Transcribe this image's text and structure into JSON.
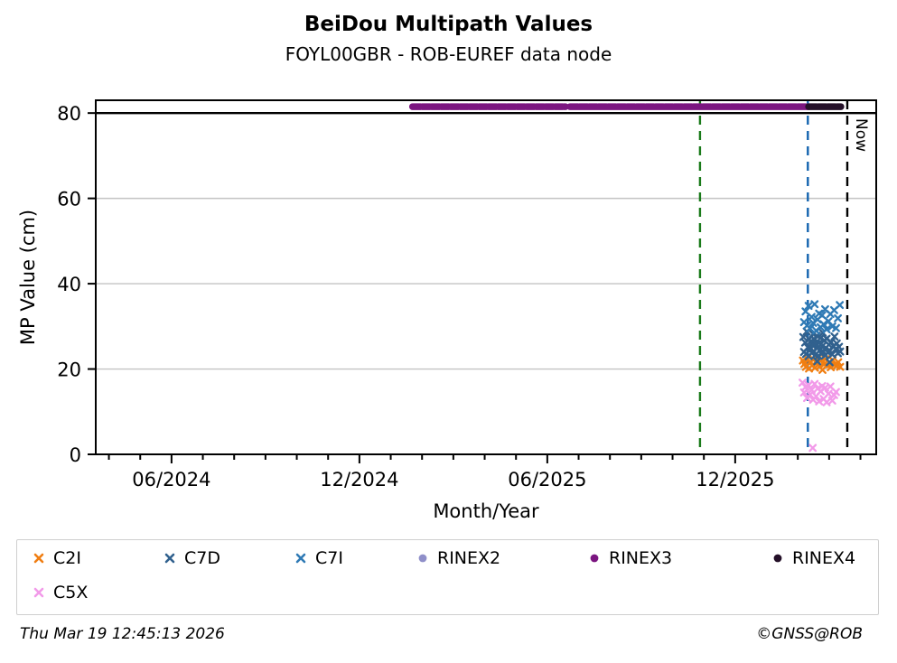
{
  "header": {
    "title": "BeiDou Multipath Values",
    "subtitle": "FOYL00GBR - ROB-EUREF data node"
  },
  "footer": {
    "timestamp": "Thu Mar 19 12:45:13 2026",
    "copyright": "©GNSS@ROB"
  },
  "chart_data": {
    "type": "scatter",
    "title": "BeiDou Multipath Values",
    "subtitle": "FOYL00GBR - ROB-EUREF data node",
    "xlabel": "Month/Year",
    "ylabel": "MP Value (cm)",
    "xlim_decimal_year": [
      2024.215,
      2026.292
    ],
    "ylim": [
      0,
      83
    ],
    "yticks": [
      0,
      20,
      40,
      60,
      80
    ],
    "grid_y": [
      20,
      40,
      60
    ],
    "threshold_line_y": 80,
    "xticks_major": [
      {
        "year": 2024.4167,
        "label": "06/2024"
      },
      {
        "year": 2024.9167,
        "label": "12/2024"
      },
      {
        "year": 2025.4167,
        "label": "06/2025"
      },
      {
        "year": 2025.9167,
        "label": "12/2025"
      }
    ],
    "xticks_minor_interval_months": 1,
    "legend_position": "bottom",
    "vlines": [
      {
        "name": "green-marker-line",
        "x": 2025.823,
        "color": "#1a7a1a",
        "style": "dashed"
      },
      {
        "name": "blue-marker-line",
        "x": 2026.11,
        "color": "#1464af",
        "style": "dashed"
      },
      {
        "name": "now-line",
        "x": 2026.215,
        "color": "#000000",
        "style": "dashed",
        "label": "Now"
      }
    ],
    "series": [
      {
        "name": "C2I",
        "marker": "x",
        "color": "#f07e12",
        "points": [
          [
            2026.097,
            22.0
          ],
          [
            2026.101,
            21.2
          ],
          [
            2026.105,
            20.5
          ],
          [
            2026.109,
            22.4
          ],
          [
            2026.113,
            20.1
          ],
          [
            2026.117,
            21.7
          ],
          [
            2026.121,
            20.8
          ],
          [
            2026.125,
            22.2
          ],
          [
            2026.129,
            20.3
          ],
          [
            2026.133,
            21.4
          ],
          [
            2026.137,
            22.6
          ],
          [
            2026.141,
            20.6
          ],
          [
            2026.145,
            21.9
          ],
          [
            2026.149,
            19.8
          ],
          [
            2026.153,
            21.1
          ],
          [
            2026.157,
            22.3
          ],
          [
            2026.161,
            20.9
          ],
          [
            2026.166,
            21.5
          ],
          [
            2026.171,
            20.4
          ],
          [
            2026.176,
            22.1
          ],
          [
            2026.181,
            21.0
          ],
          [
            2026.186,
            20.7
          ],
          [
            2026.191,
            21.6
          ],
          [
            2026.196,
            20.5
          ]
        ]
      },
      {
        "name": "C7D",
        "marker": "x",
        "color": "#31618e",
        "points": [
          [
            2026.098,
            27.5
          ],
          [
            2026.1,
            24.0
          ],
          [
            2026.103,
            26.2
          ],
          [
            2026.105,
            23.5
          ],
          [
            2026.107,
            28.8
          ],
          [
            2026.11,
            25.1
          ],
          [
            2026.112,
            23.0
          ],
          [
            2026.114,
            27.0
          ],
          [
            2026.116,
            24.6
          ],
          [
            2026.118,
            26.5
          ],
          [
            2026.12,
            23.8
          ],
          [
            2026.122,
            25.6
          ],
          [
            2026.124,
            28.2
          ],
          [
            2026.126,
            24.2
          ],
          [
            2026.128,
            26.9
          ],
          [
            2026.13,
            23.3
          ],
          [
            2026.132,
            25.9
          ],
          [
            2026.134,
            27.8
          ],
          [
            2026.135,
            21.8
          ],
          [
            2026.136,
            24.9
          ],
          [
            2026.138,
            23.1
          ],
          [
            2026.14,
            26.1
          ],
          [
            2026.142,
            24.4
          ],
          [
            2026.144,
            27.3
          ],
          [
            2026.146,
            23.6
          ],
          [
            2026.148,
            25.3
          ],
          [
            2026.15,
            28.5
          ],
          [
            2026.152,
            24.0
          ],
          [
            2026.154,
            26.7
          ],
          [
            2026.156,
            23.2
          ],
          [
            2026.158,
            25.0
          ],
          [
            2026.16,
            27.1
          ],
          [
            2026.163,
            23.9
          ],
          [
            2026.166,
            25.7
          ],
          [
            2026.168,
            21.6
          ],
          [
            2026.169,
            24.3
          ],
          [
            2026.172,
            26.3
          ],
          [
            2026.175,
            23.4
          ],
          [
            2026.178,
            25.4
          ],
          [
            2026.181,
            27.6
          ],
          [
            2026.184,
            24.7
          ],
          [
            2026.187,
            26.0
          ],
          [
            2026.19,
            23.7
          ],
          [
            2026.193,
            25.2
          ],
          [
            2026.196,
            24.1
          ]
        ]
      },
      {
        "name": "C7I",
        "marker": "x",
        "color": "#2f7ab5",
        "points": [
          [
            2026.1,
            31.0
          ],
          [
            2026.104,
            33.5
          ],
          [
            2026.108,
            30.2
          ],
          [
            2026.112,
            34.8
          ],
          [
            2026.116,
            29.5
          ],
          [
            2026.12,
            32.2
          ],
          [
            2026.124,
            30.8
          ],
          [
            2026.128,
            35.2
          ],
          [
            2026.132,
            29.0
          ],
          [
            2026.136,
            31.6
          ],
          [
            2026.14,
            33.0
          ],
          [
            2026.144,
            29.8
          ],
          [
            2026.148,
            32.6
          ],
          [
            2026.152,
            30.5
          ],
          [
            2026.156,
            34.0
          ],
          [
            2026.16,
            29.3
          ],
          [
            2026.165,
            31.2
          ],
          [
            2026.17,
            32.9
          ],
          [
            2026.175,
            30.0
          ],
          [
            2026.18,
            33.8
          ],
          [
            2026.185,
            29.6
          ],
          [
            2026.19,
            31.9
          ],
          [
            2026.195,
            35.0
          ]
        ]
      },
      {
        "name": "RINEX2",
        "marker": "circle",
        "color": "#8f8fc9",
        "points": []
      },
      {
        "name": "RINEX3",
        "marker": "circle",
        "color": "#7b1580",
        "line_value": 81.5,
        "line_segments": [
          [
            2025.058,
            2025.465
          ],
          [
            2025.477,
            2026.11
          ]
        ]
      },
      {
        "name": "RINEX4",
        "marker": "circle",
        "color": "#241028",
        "line_value": 81.5,
        "line_segments": [
          [
            2026.112,
            2026.198
          ]
        ]
      },
      {
        "name": "C5X",
        "marker": "x",
        "color": "#f29ae9",
        "points": [
          [
            2026.096,
            16.8
          ],
          [
            2026.1,
            14.5
          ],
          [
            2026.104,
            15.8
          ],
          [
            2026.108,
            13.2
          ],
          [
            2026.112,
            16.2
          ],
          [
            2026.116,
            14.0
          ],
          [
            2026.12,
            15.1
          ],
          [
            2026.123,
            1.5
          ],
          [
            2026.124,
            12.8
          ],
          [
            2026.128,
            16.5
          ],
          [
            2026.132,
            13.6
          ],
          [
            2026.136,
            15.4
          ],
          [
            2026.14,
            12.4
          ],
          [
            2026.144,
            14.8
          ],
          [
            2026.148,
            16.0
          ],
          [
            2026.152,
            13.0
          ],
          [
            2026.156,
            15.6
          ],
          [
            2026.16,
            12.2
          ],
          [
            2026.165,
            14.2
          ],
          [
            2026.17,
            15.9
          ],
          [
            2026.175,
            12.6
          ],
          [
            2026.18,
            13.9
          ],
          [
            2026.185,
            14.6
          ]
        ]
      }
    ],
    "legend_items": [
      {
        "label": "C2I",
        "marker": "x",
        "color": "#f07e12"
      },
      {
        "label": "C7D",
        "marker": "x",
        "color": "#31618e"
      },
      {
        "label": "C7I",
        "marker": "x",
        "color": "#2f7ab5"
      },
      {
        "label": "RINEX2",
        "marker": "circle",
        "color": "#8f8fc9"
      },
      {
        "label": "RINEX3",
        "marker": "circle",
        "color": "#7b1580"
      },
      {
        "label": "RINEX4",
        "marker": "circle",
        "color": "#241028"
      },
      {
        "label": "C5X",
        "marker": "x",
        "color": "#f29ae9"
      }
    ]
  }
}
